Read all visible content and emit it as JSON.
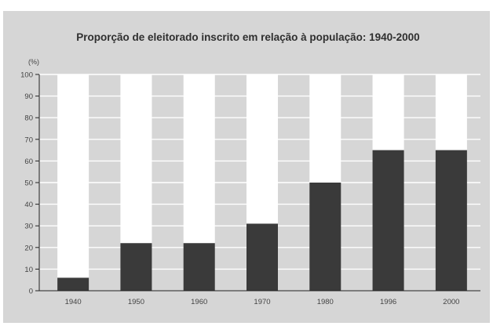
{
  "chart_data": {
    "type": "bar",
    "title": "Proporção de eleitorado inscrito em relação à população: 1940-2000",
    "ylabel": "(%)",
    "xlabel": "",
    "categories": [
      "1940",
      "1950",
      "1960",
      "1970",
      "1980",
      "1996",
      "2000"
    ],
    "values": [
      6,
      22,
      22,
      31,
      50,
      65,
      65
    ],
    "ylim": [
      0,
      100
    ],
    "yticks": [
      0,
      10,
      20,
      30,
      40,
      50,
      60,
      70,
      80,
      90,
      100
    ],
    "grid": true,
    "stacked_remainder_to": 100,
    "colors": {
      "frame": "#d6d6d6",
      "bar_filled": "#3a3a3a",
      "bar_remainder": "#ffffff",
      "gridline": "#ffffff",
      "axis": "#222222",
      "text": "#333333"
    }
  }
}
